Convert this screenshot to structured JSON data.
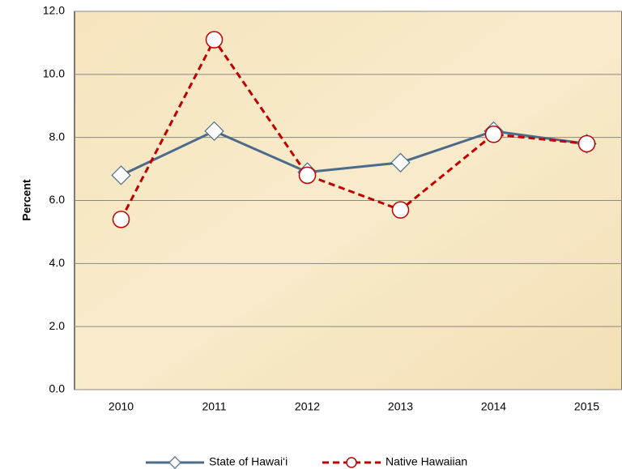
{
  "chart_data": {
    "type": "line",
    "y_label": "Percent",
    "categories": [
      "2010",
      "2011",
      "2012",
      "2013",
      "2014",
      "2015"
    ],
    "series": [
      {
        "name": "State of Hawai‘i",
        "color": "#4a6b8a",
        "values": [
          6.8,
          8.2,
          6.9,
          7.2,
          8.2,
          7.8
        ]
      },
      {
        "name": "Native Hawaiian",
        "color": "#c00000",
        "values": [
          5.4,
          11.1,
          6.8,
          5.7,
          8.1,
          7.8
        ]
      }
    ],
    "ylim": [
      0,
      12
    ],
    "yticks": [
      {
        "value": 0,
        "label": "0.0"
      },
      {
        "value": 2,
        "label": "2.0"
      },
      {
        "value": 4,
        "label": "4.0"
      },
      {
        "value": 6,
        "label": "6.0"
      },
      {
        "value": 8,
        "label": "8.0"
      },
      {
        "value": 10,
        "label": "10.0"
      },
      {
        "value": 12,
        "label": "12.0"
      }
    ],
    "grid": true
  }
}
